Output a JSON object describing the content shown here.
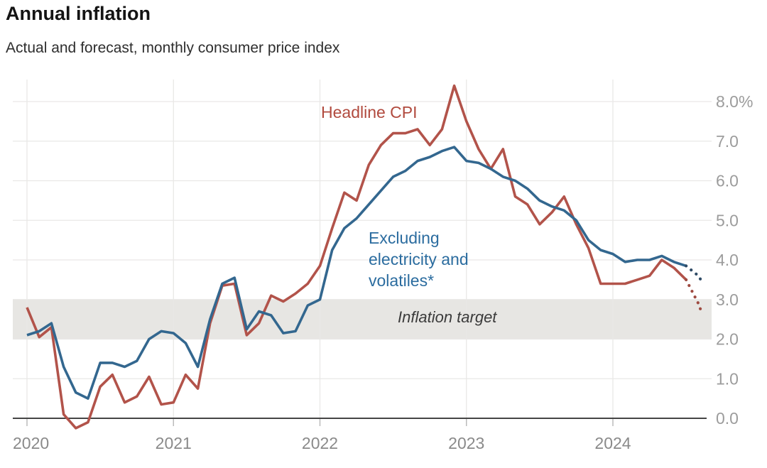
{
  "header": {
    "title": "Annual inflation",
    "subtitle": "Actual and forecast, monthly consumer price index"
  },
  "chart_data": {
    "type": "line",
    "title": "Annual inflation",
    "subtitle": "Actual and forecast, monthly consumer price index",
    "frequency": "monthly",
    "start_month": "2020-01",
    "forecast_start_month": "2024-07",
    "unit": "% annual change",
    "x_tick_labels": [
      "2020",
      "2021",
      "2022",
      "2023",
      "2024"
    ],
    "y_tick_labels": [
      "0.0",
      "1.0",
      "2.0",
      "3.0",
      "4.0",
      "5.0",
      "6.0",
      "7.0",
      "8.0%"
    ],
    "y_axis": {
      "min": -0.4,
      "max": 8.6,
      "gridlines_at": [
        0,
        1,
        2,
        3,
        4,
        5,
        6,
        7,
        8
      ]
    },
    "grid": true,
    "legend_position": "inline-annotations",
    "target_band": {
      "label": "Inflation target",
      "from": 2.0,
      "to": 3.0,
      "color": "#e7e6e3"
    },
    "labels": {
      "headline": "Headline CPI",
      "excluding": "Excluding\nelectricity and\nvolatiles*",
      "target": "Inflation target"
    },
    "colors": {
      "headline_line": "#b2534a",
      "headline_label": "#b14a3e",
      "excluding_line": "#33678f",
      "excluding_label": "#2b6c9f",
      "headline_forecast_dots": "#9e4a40",
      "excluding_forecast_dots": "#2f4b66",
      "gridline": "#e9e8e6",
      "axis_line": "#454545",
      "tick": "#bbbbbb",
      "y_tick_label": "#9c9c9c",
      "x_tick_label": "#8a8a8a",
      "target_text": "#3b3b3b"
    },
    "series": [
      {
        "name": "Headline CPI",
        "style": "solid",
        "start_month_index": 0,
        "values": [
          2.8,
          2.05,
          2.3,
          0.1,
          -0.25,
          -0.1,
          0.8,
          1.1,
          0.4,
          0.55,
          1.05,
          0.35,
          0.4,
          1.1,
          0.75,
          2.4,
          3.35,
          3.4,
          2.1,
          2.4,
          3.1,
          2.95,
          3.15,
          3.4,
          3.85,
          4.8,
          5.7,
          5.5,
          6.4,
          6.9,
          7.2,
          7.2,
          7.3,
          6.9,
          7.3,
          8.4,
          7.5,
          6.8,
          6.3,
          6.8,
          5.6,
          5.4,
          4.9,
          5.2,
          5.6,
          4.9,
          4.3,
          3.4,
          3.4,
          3.4,
          3.5,
          3.6,
          4.0,
          3.8,
          3.5
        ]
      },
      {
        "name": "Headline CPI (forecast)",
        "style": "dotted",
        "month_offsets": [
          54,
          55,
          55.3
        ],
        "values": [
          3.5,
          2.9,
          2.65
        ]
      },
      {
        "name": "Excluding electricity and volatiles*",
        "style": "solid",
        "start_month_index": 0,
        "values": [
          2.1,
          2.2,
          2.4,
          1.3,
          0.65,
          0.5,
          1.4,
          1.4,
          1.3,
          1.45,
          2.0,
          2.2,
          2.15,
          1.9,
          1.3,
          2.5,
          3.4,
          3.55,
          2.25,
          2.7,
          2.6,
          2.15,
          2.2,
          2.85,
          3.0,
          4.25,
          4.8,
          5.05,
          5.4,
          5.75,
          6.1,
          6.25,
          6.5,
          6.6,
          6.75,
          6.85,
          6.5,
          6.45,
          6.3,
          6.1,
          6.0,
          5.8,
          5.5,
          5.35,
          5.25,
          5.0,
          4.5,
          4.25,
          4.15,
          3.95,
          4.0,
          4.0,
          4.1,
          3.95,
          3.85
        ]
      },
      {
        "name": "Excluding electricity and volatiles* (forecast)",
        "style": "dotted",
        "month_offsets": [
          54,
          55,
          55.3
        ],
        "values": [
          3.85,
          3.6,
          3.45
        ]
      }
    ]
  }
}
